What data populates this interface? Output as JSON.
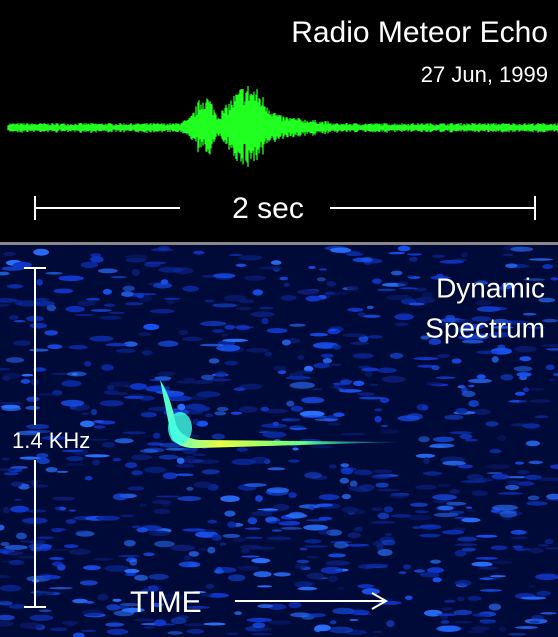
{
  "title": "Radio Meteor Echo",
  "date": "27 Jun, 1999",
  "time_scale": "2 sec",
  "spectrum_label": [
    "Dynamic",
    "Spectrum"
  ],
  "frequency_scale": "1.4 KHz",
  "time_axis": "TIME"
}
